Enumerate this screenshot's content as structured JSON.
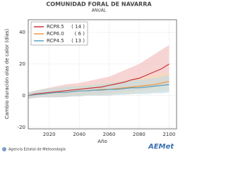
{
  "chart_data": {
    "type": "line",
    "title": "COMUNIDAD FORAL DE NAVARRA",
    "subtitle": "ANUAL",
    "y_label": "Cambio duración olas de calor (días)",
    "x_label": "Año",
    "source": "Agencia Estatal de Meteorología",
    "logo": "AEMet",
    "x": [
      2006,
      2010,
      2015,
      2020,
      2025,
      2030,
      2035,
      2040,
      2045,
      2050,
      2055,
      2060,
      2065,
      2070,
      2075,
      2080,
      2085,
      2090,
      2095,
      2100
    ],
    "series": [
      {
        "name": "RCP8.5",
        "count_label": "( 14 )",
        "color": "#cc3333",
        "band_color": "#f2b8b8",
        "values": [
          0,
          1,
          1.5,
          2,
          2.5,
          3,
          3.5,
          4,
          4.5,
          5,
          5.5,
          6.5,
          7.5,
          8.5,
          10,
          11,
          13,
          15,
          17,
          20
        ],
        "lower": [
          -2,
          -1,
          -1,
          -1,
          -1,
          -0.5,
          0,
          0,
          0.5,
          1,
          1,
          1.5,
          2,
          2.5,
          3,
          3.5,
          4,
          5,
          6,
          7
        ],
        "upper": [
          2,
          3,
          4,
          5,
          6,
          7,
          7.5,
          8,
          9,
          10,
          11,
          12,
          14,
          16,
          18,
          20,
          23,
          26,
          29,
          32
        ]
      },
      {
        "name": "RCP6.0",
        "count_label": "( 6 )",
        "color": "#f09a40",
        "band_color": "#f8d8b0",
        "values": [
          0,
          0.5,
          1,
          1.5,
          2,
          2,
          2.5,
          3,
          3,
          3.5,
          4,
          4,
          4.5,
          5,
          5.5,
          6,
          6.5,
          7,
          8,
          9
        ],
        "lower": [
          -2,
          -1.5,
          -1,
          -1,
          -1,
          -1,
          -0.5,
          -0.5,
          0,
          0,
          0,
          0.5,
          0.5,
          1,
          1,
          1.5,
          2,
          2,
          2.5,
          3
        ],
        "upper": [
          2,
          3,
          4,
          4.5,
          5,
          5.5,
          6,
          6.5,
          7,
          7.5,
          8,
          8.5,
          9,
          9.5,
          10,
          11,
          12,
          13,
          14,
          15
        ]
      },
      {
        "name": "RCP4.5",
        "count_label": "( 13 )",
        "color": "#5aa0c0",
        "band_color": "#bfdce8",
        "values": [
          0,
          0.5,
          1,
          1.5,
          2,
          2,
          2.5,
          3,
          3,
          3.5,
          3.5,
          4,
          4,
          4.5,
          5,
          5,
          5.5,
          6,
          6.5,
          7
        ],
        "lower": [
          -2,
          -1.5,
          -1,
          -1,
          -1,
          -1,
          -0.5,
          -0.5,
          0,
          0,
          0,
          0,
          0.5,
          0.5,
          1,
          1,
          1,
          1.5,
          1.5,
          2
        ],
        "upper": [
          2,
          3,
          4,
          4.5,
          5,
          5.5,
          6,
          6,
          6.5,
          7,
          7.5,
          8,
          8.5,
          9,
          9.5,
          10,
          10.5,
          11,
          12,
          13
        ]
      }
    ],
    "xlim": [
      2006,
      2105
    ],
    "ylim": [
      -21,
      48
    ],
    "xticks": [
      2020,
      2040,
      2060,
      2080,
      2100
    ],
    "yticks": [
      -20,
      0,
      20,
      40
    ],
    "grid": true
  }
}
